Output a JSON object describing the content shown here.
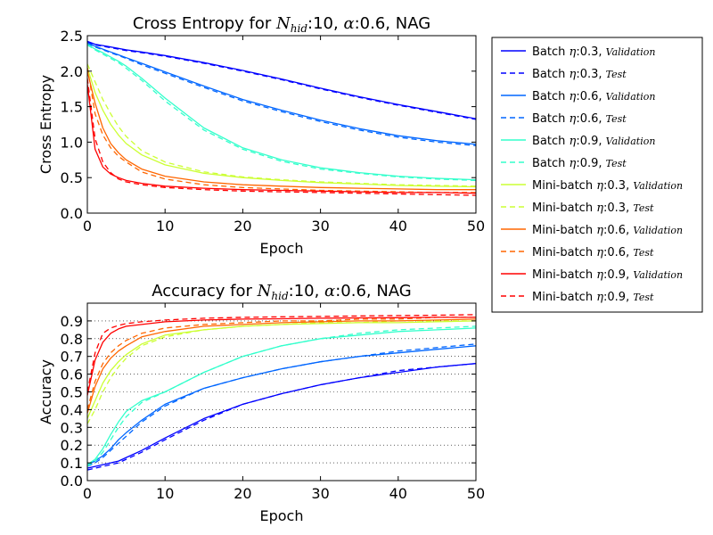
{
  "chart_data": [
    {
      "type": "line",
      "title": "Cross Entropy for N_hid:10, α:0.6, NAG",
      "title_parts": {
        "prefix": "Cross Entropy for ",
        "var": "N",
        "sub": "hid",
        "mid": ":10, ",
        "greek": "α",
        "suffix": ":0.6, NAG"
      },
      "xlabel": "Epoch",
      "ylabel": "Cross Entropy",
      "xlim": [
        0,
        50
      ],
      "ylim": [
        0,
        2.5
      ],
      "xticks": [
        "0",
        "10",
        "20",
        "30",
        "40",
        "50"
      ],
      "yticks": [
        "0.0",
        "0.5",
        "1.0",
        "1.5",
        "2.0",
        "2.5"
      ],
      "grid": false,
      "x": [
        0,
        1,
        2,
        3,
        4,
        5,
        7,
        10,
        15,
        20,
        25,
        30,
        35,
        40,
        45,
        50
      ],
      "series": [
        {
          "name": "Batch η:0.3, Validation",
          "values": [
            2.42,
            2.38,
            2.36,
            2.34,
            2.32,
            2.3,
            2.27,
            2.22,
            2.12,
            2.01,
            1.89,
            1.76,
            1.64,
            1.53,
            1.43,
            1.33
          ]
        },
        {
          "name": "Batch η:0.3, Test",
          "values": [
            2.41,
            2.37,
            2.35,
            2.33,
            2.31,
            2.29,
            2.26,
            2.21,
            2.11,
            2.0,
            1.88,
            1.75,
            1.63,
            1.52,
            1.42,
            1.32
          ]
        },
        {
          "name": "Batch η:0.6, Validation",
          "values": [
            2.4,
            2.35,
            2.31,
            2.27,
            2.23,
            2.19,
            2.11,
            1.99,
            1.79,
            1.6,
            1.45,
            1.31,
            1.19,
            1.09,
            1.02,
            0.97
          ]
        },
        {
          "name": "Batch η:0.6, Test",
          "values": [
            2.39,
            2.34,
            2.3,
            2.26,
            2.22,
            2.18,
            2.09,
            1.97,
            1.77,
            1.58,
            1.43,
            1.29,
            1.17,
            1.07,
            1.0,
            0.95
          ]
        },
        {
          "name": "Batch η:0.9, Validation",
          "values": [
            2.38,
            2.31,
            2.26,
            2.2,
            2.14,
            2.07,
            1.9,
            1.62,
            1.2,
            0.92,
            0.75,
            0.64,
            0.57,
            0.52,
            0.49,
            0.47
          ]
        },
        {
          "name": "Batch η:0.9, Test",
          "values": [
            2.37,
            2.3,
            2.24,
            2.18,
            2.12,
            2.04,
            1.87,
            1.58,
            1.17,
            0.9,
            0.73,
            0.62,
            0.56,
            0.51,
            0.48,
            0.46
          ]
        },
        {
          "name": "Mini-batch η:0.3, Validation",
          "values": [
            2.05,
            1.7,
            1.45,
            1.25,
            1.1,
            0.98,
            0.82,
            0.68,
            0.56,
            0.5,
            0.46,
            0.43,
            0.41,
            0.39,
            0.38,
            0.37
          ]
        },
        {
          "name": "Mini-batch η:0.3, Test",
          "values": [
            2.1,
            1.85,
            1.6,
            1.4,
            1.22,
            1.08,
            0.88,
            0.72,
            0.58,
            0.51,
            0.47,
            0.44,
            0.42,
            0.4,
            0.39,
            0.38
          ]
        },
        {
          "name": "Mini-batch η:0.6, Validation",
          "values": [
            2.0,
            1.55,
            1.2,
            0.98,
            0.85,
            0.75,
            0.62,
            0.52,
            0.44,
            0.4,
            0.38,
            0.36,
            0.35,
            0.34,
            0.33,
            0.33
          ]
        },
        {
          "name": "Mini-batch η:0.6, Test",
          "values": [
            2.05,
            1.4,
            1.1,
            0.92,
            0.8,
            0.72,
            0.58,
            0.48,
            0.4,
            0.36,
            0.34,
            0.32,
            0.31,
            0.3,
            0.29,
            0.29
          ]
        },
        {
          "name": "Mini-batch η:0.9, Validation",
          "values": [
            1.82,
            0.9,
            0.65,
            0.55,
            0.5,
            0.46,
            0.42,
            0.38,
            0.35,
            0.33,
            0.32,
            0.31,
            0.3,
            0.29,
            0.29,
            0.28
          ]
        },
        {
          "name": "Mini-batch η:0.9, Test",
          "values": [
            1.9,
            1.05,
            0.72,
            0.57,
            0.48,
            0.44,
            0.4,
            0.36,
            0.33,
            0.31,
            0.3,
            0.29,
            0.28,
            0.27,
            0.26,
            0.25
          ]
        }
      ]
    },
    {
      "type": "line",
      "title": "Accuracy for N_hid:10, α:0.6, NAG",
      "title_parts": {
        "prefix": "Accuracy for ",
        "var": "N",
        "sub": "hid",
        "mid": ":10, ",
        "greek": "α",
        "suffix": ":0.6, NAG"
      },
      "xlabel": "Epoch",
      "ylabel": "Accuracy",
      "xlim": [
        0,
        50
      ],
      "ylim": [
        0,
        1.0
      ],
      "xticks": [
        "0",
        "10",
        "20",
        "30",
        "40",
        "50"
      ],
      "yticks": [
        "0.0",
        "0.1",
        "0.2",
        "0.3",
        "0.4",
        "0.5",
        "0.6",
        "0.7",
        "0.8",
        "0.9"
      ],
      "grid": true,
      "x": [
        0,
        1,
        2,
        3,
        4,
        5,
        7,
        10,
        15,
        20,
        25,
        30,
        35,
        40,
        45,
        50
      ],
      "series": [
        {
          "name": "Batch η:0.3, Validation",
          "values": [
            0.07,
            0.08,
            0.09,
            0.1,
            0.11,
            0.13,
            0.17,
            0.24,
            0.35,
            0.43,
            0.49,
            0.54,
            0.58,
            0.61,
            0.64,
            0.66
          ]
        },
        {
          "name": "Batch η:0.3, Test",
          "values": [
            0.06,
            0.07,
            0.08,
            0.09,
            0.1,
            0.12,
            0.16,
            0.23,
            0.34,
            0.43,
            0.49,
            0.54,
            0.58,
            0.62,
            0.64,
            0.66
          ]
        },
        {
          "name": "Batch η:0.6, Validation",
          "values": [
            0.09,
            0.11,
            0.14,
            0.18,
            0.23,
            0.27,
            0.34,
            0.43,
            0.52,
            0.58,
            0.63,
            0.67,
            0.7,
            0.72,
            0.74,
            0.76
          ]
        },
        {
          "name": "Batch η:0.6, Test",
          "values": [
            0.08,
            0.1,
            0.13,
            0.17,
            0.21,
            0.25,
            0.33,
            0.42,
            0.52,
            0.58,
            0.63,
            0.67,
            0.7,
            0.73,
            0.75,
            0.77
          ]
        },
        {
          "name": "Batch η:0.9, Validation",
          "values": [
            0.09,
            0.12,
            0.18,
            0.26,
            0.33,
            0.39,
            0.45,
            0.5,
            0.61,
            0.7,
            0.76,
            0.8,
            0.82,
            0.84,
            0.85,
            0.86
          ]
        },
        {
          "name": "Batch η:0.9, Test",
          "values": [
            0.08,
            0.11,
            0.16,
            0.23,
            0.3,
            0.36,
            0.44,
            0.5,
            0.61,
            0.7,
            0.76,
            0.8,
            0.83,
            0.85,
            0.86,
            0.87
          ]
        },
        {
          "name": "Mini-batch η:0.3, Validation",
          "values": [
            0.35,
            0.45,
            0.55,
            0.62,
            0.67,
            0.71,
            0.77,
            0.82,
            0.85,
            0.87,
            0.88,
            0.885,
            0.89,
            0.89,
            0.895,
            0.9
          ]
        },
        {
          "name": "Mini-batch η:0.3, Test",
          "values": [
            0.32,
            0.4,
            0.5,
            0.58,
            0.64,
            0.69,
            0.76,
            0.81,
            0.85,
            0.87,
            0.88,
            0.89,
            0.89,
            0.9,
            0.9,
            0.9
          ]
        },
        {
          "name": "Mini-batch η:0.6, Validation",
          "values": [
            0.38,
            0.53,
            0.63,
            0.69,
            0.73,
            0.76,
            0.81,
            0.84,
            0.87,
            0.88,
            0.89,
            0.895,
            0.9,
            0.9,
            0.905,
            0.91
          ]
        },
        {
          "name": "Mini-batch η:0.6, Test",
          "values": [
            0.4,
            0.56,
            0.66,
            0.72,
            0.76,
            0.79,
            0.83,
            0.86,
            0.88,
            0.89,
            0.9,
            0.9,
            0.91,
            0.91,
            0.92,
            0.92
          ]
        },
        {
          "name": "Mini-batch η:0.9, Validation",
          "values": [
            0.48,
            0.68,
            0.78,
            0.83,
            0.855,
            0.87,
            0.88,
            0.895,
            0.905,
            0.91,
            0.912,
            0.915,
            0.917,
            0.918,
            0.92,
            0.92
          ]
        },
        {
          "name": "Mini-batch η:0.9, Test",
          "values": [
            0.5,
            0.72,
            0.83,
            0.86,
            0.875,
            0.885,
            0.895,
            0.905,
            0.915,
            0.92,
            0.923,
            0.925,
            0.928,
            0.93,
            0.932,
            0.935
          ]
        }
      ]
    }
  ],
  "legend": {
    "placement": "right",
    "entries": [
      {
        "group": "Batch",
        "eta": "0.3",
        "split": "Validation",
        "color": "#0000ff",
        "dash": "solid"
      },
      {
        "group": "Batch",
        "eta": "0.3",
        "split": "Test",
        "color": "#0000ff",
        "dash": "dashed"
      },
      {
        "group": "Batch",
        "eta": "0.6",
        "split": "Validation",
        "color": "#0066ff",
        "dash": "solid"
      },
      {
        "group": "Batch",
        "eta": "0.6",
        "split": "Test",
        "color": "#0066ff",
        "dash": "dashed"
      },
      {
        "group": "Batch",
        "eta": "0.9",
        "split": "Validation",
        "color": "#33ffcc",
        "dash": "solid"
      },
      {
        "group": "Batch",
        "eta": "0.9",
        "split": "Test",
        "color": "#33ffcc",
        "dash": "dashed"
      },
      {
        "group": "Mini-batch",
        "eta": "0.3",
        "split": "Validation",
        "color": "#ccff33",
        "dash": "solid"
      },
      {
        "group": "Mini-batch",
        "eta": "0.3",
        "split": "Test",
        "color": "#ccff33",
        "dash": "dashed"
      },
      {
        "group": "Mini-batch",
        "eta": "0.6",
        "split": "Validation",
        "color": "#ff6600",
        "dash": "solid"
      },
      {
        "group": "Mini-batch",
        "eta": "0.6",
        "split": "Test",
        "color": "#ff6600",
        "dash": "dashed"
      },
      {
        "group": "Mini-batch",
        "eta": "0.9",
        "split": "Validation",
        "color": "#ff0000",
        "dash": "solid"
      },
      {
        "group": "Mini-batch",
        "eta": "0.9",
        "split": "Test",
        "color": "#ff0000",
        "dash": "dashed"
      }
    ]
  }
}
